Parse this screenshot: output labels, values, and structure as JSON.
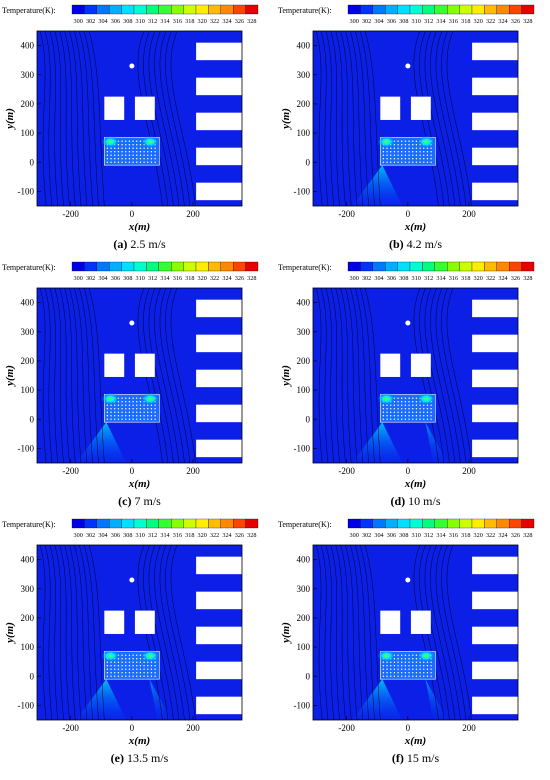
{
  "colorbar": {
    "title": "Temperature(K):",
    "ticks": [
      "300",
      "302",
      "304",
      "306",
      "308",
      "310",
      "312",
      "314",
      "316",
      "318",
      "320",
      "322",
      "324",
      "326",
      "328"
    ],
    "colors": [
      "#0000e8",
      "#0033ff",
      "#0077ff",
      "#00b0ff",
      "#00e0ff",
      "#00ffd0",
      "#00ff80",
      "#33ff33",
      "#88ff00",
      "#ccff00",
      "#ffee00",
      "#ffbb00",
      "#ff8800",
      "#ff4400",
      "#e80000"
    ]
  },
  "chart_data": [
    {
      "type": "heatmap",
      "caption": "(a) 2.5 m/s",
      "panel_label": "(a)",
      "speed_text": "2.5 m/s",
      "xlabel": "x(m)",
      "ylabel": "y(m)",
      "xticks": [
        -200,
        0,
        200
      ],
      "yticks": [
        -100,
        0,
        100,
        200,
        300,
        400
      ],
      "xlim": [
        -310,
        360
      ],
      "ylim": [
        -150,
        450
      ],
      "plume": "weak"
    },
    {
      "type": "heatmap",
      "caption": "(b) 4.2 m/s",
      "panel_label": "(b)",
      "speed_text": "4.2 m/s",
      "xlabel": "x(m)",
      "ylabel": "y(m)",
      "xticks": [
        -200,
        0,
        200
      ],
      "yticks": [
        -100,
        0,
        100,
        200,
        300,
        400
      ],
      "xlim": [
        -310,
        360
      ],
      "ylim": [
        -150,
        450
      ],
      "plume": "left"
    },
    {
      "type": "heatmap",
      "caption": "(c) 7 m/s",
      "panel_label": "(c)",
      "speed_text": "7 m/s",
      "xlabel": "x(m)",
      "ylabel": "y(m)",
      "xticks": [
        -200,
        0,
        200
      ],
      "yticks": [
        -100,
        0,
        100,
        200,
        300,
        400
      ],
      "xlim": [
        -310,
        360
      ],
      "ylim": [
        -150,
        450
      ],
      "plume": "left"
    },
    {
      "type": "heatmap",
      "caption": "(d) 10 m/s",
      "panel_label": "(d)",
      "speed_text": "10 m/s",
      "xlabel": "x(m)",
      "ylabel": "y(m)",
      "xticks": [
        -200,
        0,
        200
      ],
      "yticks": [
        -100,
        0,
        100,
        200,
        300,
        400
      ],
      "xlim": [
        -310,
        360
      ],
      "ylim": [
        -150,
        450
      ],
      "plume": "both"
    },
    {
      "type": "heatmap",
      "caption": "(e) 13.5 m/s",
      "panel_label": "(e)",
      "speed_text": "13.5 m/s",
      "xlabel": "x(m)",
      "ylabel": "y(m)",
      "xticks": [
        -200,
        0,
        200
      ],
      "yticks": [
        -100,
        0,
        100,
        200,
        300,
        400
      ],
      "xlim": [
        -310,
        360
      ],
      "ylim": [
        -150,
        450
      ],
      "plume": "both"
    },
    {
      "type": "heatmap",
      "caption": "(f) 15 m/s",
      "panel_label": "(f)",
      "speed_text": "15 m/s",
      "xlabel": "x(m)",
      "ylabel": "y(m)",
      "xticks": [
        -200,
        0,
        200
      ],
      "yticks": [
        -100,
        0,
        100,
        200,
        300,
        400
      ],
      "xlim": [
        -310,
        360
      ],
      "ylim": [
        -150,
        450
      ],
      "plume": "both"
    }
  ]
}
